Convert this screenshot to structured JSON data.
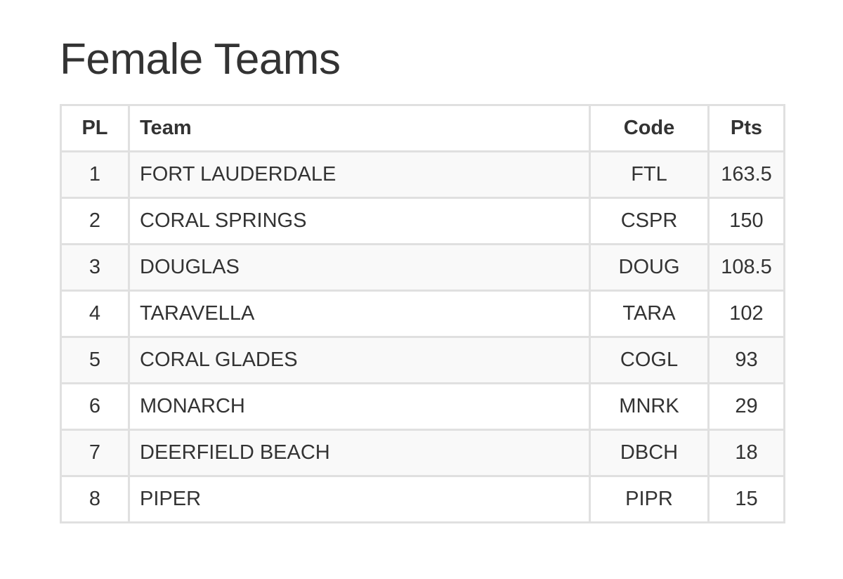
{
  "header": {
    "title": "Female Teams"
  },
  "table": {
    "columns": [
      "PL",
      "Team",
      "Code",
      "Pts"
    ],
    "rows": [
      [
        1,
        "FORT LAUDERDALE",
        "FTL",
        163.5
      ],
      [
        2,
        "CORAL SPRINGS",
        "CSPR",
        150
      ],
      [
        3,
        "DOUGLAS",
        "DOUG",
        108.5
      ],
      [
        4,
        "TARAVELLA",
        "TARA",
        102
      ],
      [
        5,
        "CORAL GLADES",
        "COGL",
        93
      ],
      [
        6,
        "MONARCH",
        "MNRK",
        29
      ],
      [
        7,
        "DEERFIELD BEACH",
        "DBCH",
        18
      ],
      [
        8,
        "PIPER",
        "PIPR",
        15
      ]
    ]
  }
}
